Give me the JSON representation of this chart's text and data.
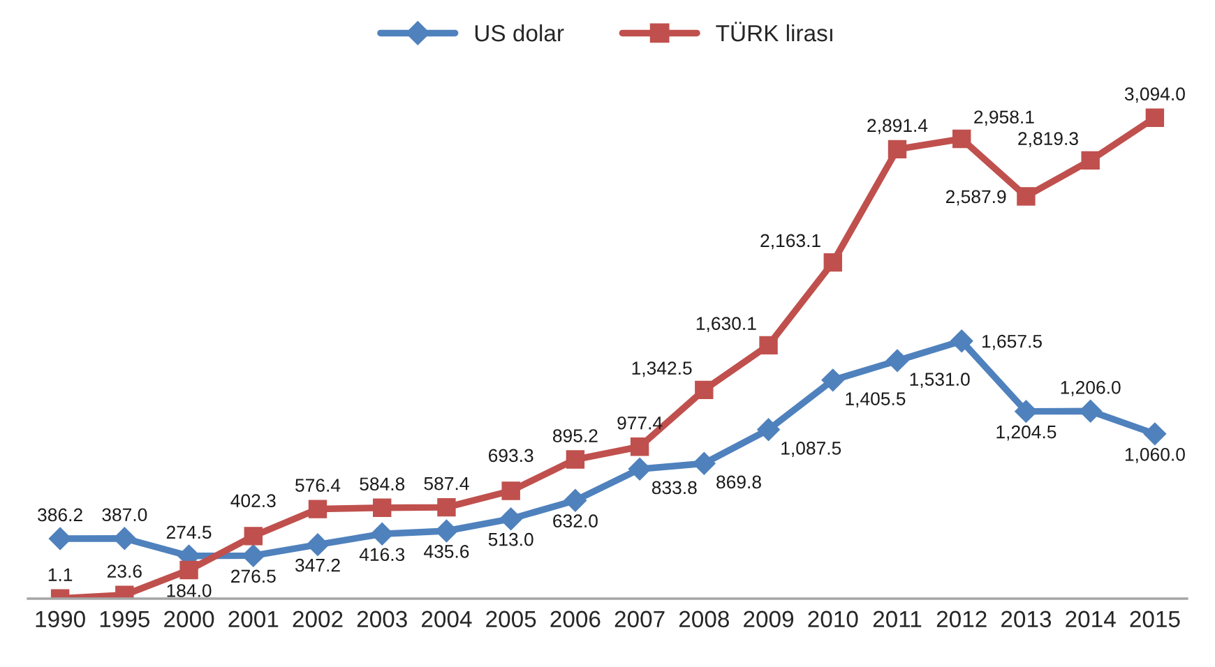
{
  "chart_data": {
    "type": "line",
    "categories": [
      "1990",
      "1995",
      "2000",
      "2001",
      "2002",
      "2003",
      "2004",
      "2005",
      "2006",
      "2007",
      "2008",
      "2009",
      "2010",
      "2011",
      "2012",
      "2013",
      "2014",
      "2015"
    ],
    "series": [
      {
        "name": "US dolar",
        "color": "#4f81bd",
        "marker": "diamond",
        "values": [
          386.2,
          387.0,
          274.5,
          276.5,
          347.2,
          416.3,
          435.6,
          513.0,
          632.0,
          833.8,
          869.8,
          1087.5,
          1405.5,
          1531.0,
          1657.5,
          1204.5,
          1206.0,
          1060.0
        ],
        "value_labels": [
          "386.2",
          "387.0",
          "274.5",
          "276.5",
          "347.2",
          "416.3",
          "435.6",
          "513.0",
          "632.0",
          "833.8",
          "869.8",
          "1,087.5",
          "1,405.5",
          "1,531.0",
          "1,657.5",
          "1,204.5",
          "1,206.0",
          "1,060.0"
        ]
      },
      {
        "name": "TÜRK lirası",
        "color": "#c0504d",
        "marker": "square",
        "values": [
          1.1,
          23.6,
          184.0,
          402.3,
          576.4,
          584.8,
          587.4,
          693.3,
          895.2,
          977.4,
          1342.5,
          1630.1,
          2163.1,
          2891.4,
          2958.1,
          2587.9,
          2819.3,
          3094.0
        ],
        "value_labels": [
          "1.1",
          "23.6",
          "184.0",
          "402.3",
          "576.4",
          "584.8",
          "587.4",
          "693.3",
          "895.2",
          "977.4",
          "1,342.5",
          "1,630.1",
          "2,163.1",
          "2,891.4",
          "2,958.1",
          "2,587.9",
          "2,819.3",
          "3,094.0"
        ]
      }
    ],
    "tick_labels": "x",
    "legend": "top"
  }
}
